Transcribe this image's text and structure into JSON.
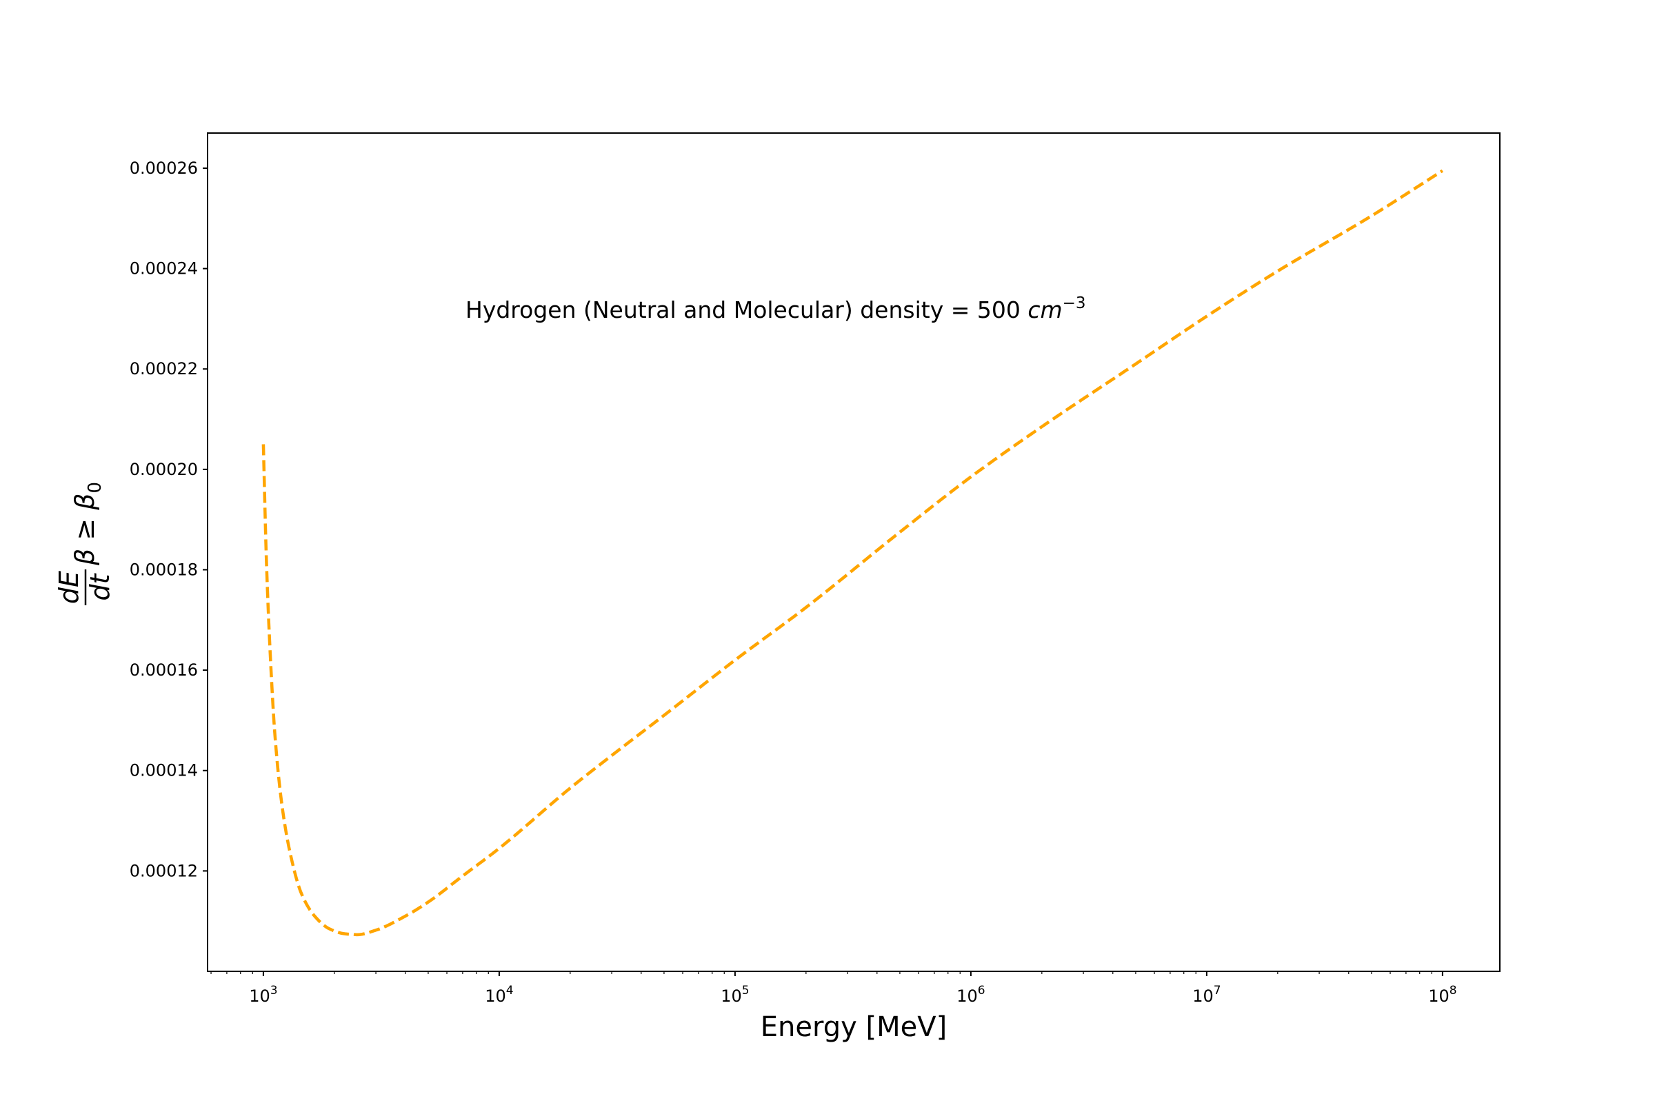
{
  "chart_data": {
    "type": "line",
    "x_scale": "log",
    "y_scale": "linear",
    "xlabel": "Energy [MeV]",
    "ylabel": {
      "numerator": "dE",
      "denominator": "dt",
      "suffix": "β ≥ β",
      "suffix_sub": "0"
    },
    "annotation": {
      "text": "Hydrogen (Neutral and Molecular) density = 500 ",
      "unit": "cm",
      "unit_exp": "−3"
    },
    "xlim": [
      580,
      175000000
    ],
    "ylim": [
      0.0001,
      0.000267
    ],
    "x_ticks": [
      {
        "value": 1000,
        "base": "10",
        "exp": "3"
      },
      {
        "value": 10000,
        "base": "10",
        "exp": "4"
      },
      {
        "value": 100000,
        "base": "10",
        "exp": "5"
      },
      {
        "value": 1000000,
        "base": "10",
        "exp": "6"
      },
      {
        "value": 10000000,
        "base": "10",
        "exp": "7"
      },
      {
        "value": 100000000,
        "base": "10",
        "exp": "8"
      }
    ],
    "y_ticks": [
      {
        "value": 0.00012,
        "label": "0.00012"
      },
      {
        "value": 0.00014,
        "label": "0.00014"
      },
      {
        "value": 0.00016,
        "label": "0.00016"
      },
      {
        "value": 0.00018,
        "label": "0.00018"
      },
      {
        "value": 0.0002,
        "label": "0.00020"
      },
      {
        "value": 0.00022,
        "label": "0.00022"
      },
      {
        "value": 0.00024,
        "label": "0.00024"
      },
      {
        "value": 0.00026,
        "label": "0.00026"
      }
    ],
    "grid": false,
    "series": [
      {
        "color": "#ffa500",
        "linestyle": "dashed",
        "points": [
          [
            1000,
            0.000205
          ],
          [
            1030,
            0.000182
          ],
          [
            1070,
            0.000163
          ],
          [
            1120,
            0.000147
          ],
          [
            1200,
            0.000133
          ],
          [
            1300,
            0.0001235
          ],
          [
            1450,
            0.0001155
          ],
          [
            1650,
            0.000111
          ],
          [
            1900,
            0.0001085
          ],
          [
            2200,
            0.0001075
          ],
          [
            2500,
            0.0001073
          ],
          [
            3000,
            0.0001082
          ],
          [
            4000,
            0.000111
          ],
          [
            5000,
            0.0001138
          ],
          [
            7000,
            0.000119
          ],
          [
            10000,
            0.0001245
          ],
          [
            20000,
            0.0001365
          ],
          [
            30000,
            0.000143
          ],
          [
            50000,
            0.000151
          ],
          [
            100000,
            0.000162
          ],
          [
            200000,
            0.0001725
          ],
          [
            500000,
            0.0001875
          ],
          [
            1000000,
            0.0001985
          ],
          [
            2000000,
            0.0002085
          ],
          [
            5000000,
            0.000221
          ],
          [
            10000000,
            0.0002305
          ],
          [
            20000000,
            0.0002395
          ],
          [
            50000000,
            0.0002505
          ],
          [
            100000000,
            0.0002595
          ]
        ]
      }
    ]
  }
}
